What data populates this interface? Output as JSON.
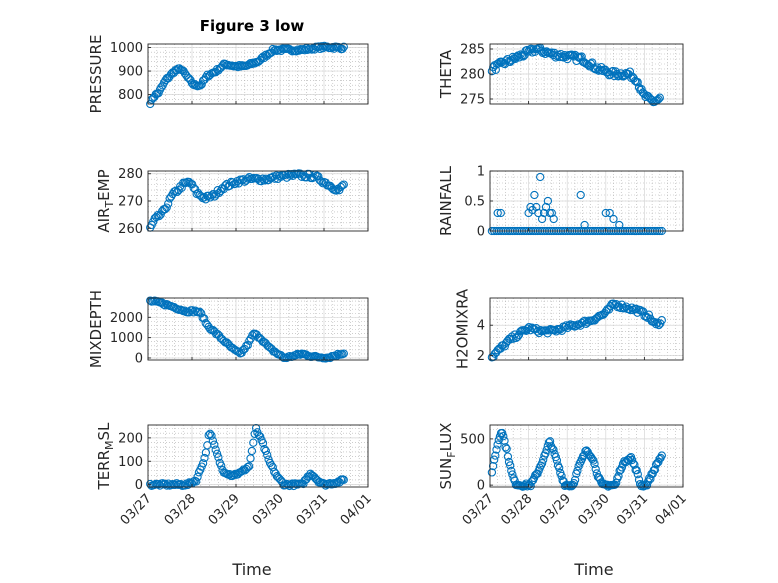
{
  "figure": {
    "title": "Figure 3 low",
    "xlabel": "Time"
  },
  "colors": {
    "marker": "#0072BD",
    "axis": "#262626",
    "grid": "#b0b0b0"
  },
  "chart_data": [
    {
      "type": "scatter",
      "name": "PRESSURE",
      "ylabel": "PRESSURE",
      "ylabel_sub": "",
      "xlim": [
        0,
        5
      ],
      "ylim": [
        760,
        1015
      ],
      "yticks": [
        800,
        900,
        1000
      ],
      "ytick_labels": [
        "800",
        "900",
        "1000"
      ],
      "xticks": [
        0,
        1,
        2,
        3,
        4,
        5
      ],
      "xtick_labels": [
        "03/27",
        "03/28",
        "03/29",
        "03/30",
        "03/31",
        "04/01"
      ],
      "show_xticklabels": false,
      "grid": "on",
      "anchors": [
        [
          0.05,
          760
        ],
        [
          0.12,
          790
        ],
        [
          0.25,
          810
        ],
        [
          0.4,
          860
        ],
        [
          0.6,
          900
        ],
        [
          0.75,
          910
        ],
        [
          0.95,
          860
        ],
        [
          1.05,
          840
        ],
        [
          1.2,
          840
        ],
        [
          1.35,
          880
        ],
        [
          1.55,
          900
        ],
        [
          1.75,
          930
        ],
        [
          2.0,
          920
        ],
        [
          2.2,
          920
        ],
        [
          2.5,
          940
        ],
        [
          2.85,
          990
        ],
        [
          3.2,
          990
        ],
        [
          3.5,
          990
        ],
        [
          3.8,
          998
        ],
        [
          4.05,
          1002
        ],
        [
          4.3,
          1000
        ],
        [
          4.45,
          998
        ]
      ],
      "samples": 140,
      "jitter": 6
    },
    {
      "type": "scatter",
      "name": "THETA",
      "ylabel": "THETA",
      "ylabel_sub": "",
      "xlim": [
        0,
        5
      ],
      "ylim": [
        274,
        286
      ],
      "yticks": [
        275,
        280,
        285
      ],
      "ytick_labels": [
        "275",
        "280",
        "285"
      ],
      "xticks": [
        0,
        1,
        2,
        3,
        4,
        5
      ],
      "xtick_labels": [
        "03/27",
        "03/28",
        "03/29",
        "03/30",
        "03/31",
        "04/01"
      ],
      "show_xticklabels": false,
      "grid": "on",
      "anchors": [
        [
          0.05,
          281
        ],
        [
          0.3,
          282
        ],
        [
          0.6,
          283
        ],
        [
          0.9,
          284
        ],
        [
          1.2,
          285
        ],
        [
          1.6,
          284
        ],
        [
          2.0,
          283.5
        ],
        [
          2.4,
          283
        ],
        [
          2.8,
          281
        ],
        [
          3.2,
          280
        ],
        [
          3.6,
          280
        ],
        [
          3.8,
          279
        ],
        [
          3.95,
          276
        ],
        [
          4.1,
          275
        ],
        [
          4.25,
          274.5
        ],
        [
          4.4,
          275
        ]
      ],
      "samples": 130,
      "jitter": 0.6
    },
    {
      "type": "scatter",
      "name": "AIR_TEMP",
      "ylabel": "AIR",
      "ylabel_sub": "T",
      "ylabel_suffix": "EMP",
      "xlim": [
        0,
        5
      ],
      "ylim": [
        259,
        281
      ],
      "yticks": [
        260,
        270,
        280
      ],
      "ytick_labels": [
        "260",
        "270",
        "280"
      ],
      "xticks": [
        0,
        1,
        2,
        3,
        4,
        5
      ],
      "xtick_labels": [
        "03/27",
        "03/28",
        "03/29",
        "03/30",
        "03/31",
        "04/01"
      ],
      "show_xticklabels": false,
      "grid": "on",
      "anchors": [
        [
          0.05,
          260
        ],
        [
          0.15,
          263
        ],
        [
          0.35,
          266
        ],
        [
          0.55,
          272
        ],
        [
          0.8,
          276
        ],
        [
          0.95,
          277
        ],
        [
          1.1,
          273
        ],
        [
          1.3,
          271
        ],
        [
          1.5,
          272
        ],
        [
          1.7,
          275
        ],
        [
          2.0,
          277
        ],
        [
          2.3,
          278
        ],
        [
          2.7,
          278
        ],
        [
          3.0,
          279
        ],
        [
          3.4,
          279.5
        ],
        [
          3.8,
          279
        ],
        [
          4.0,
          277
        ],
        [
          4.2,
          275
        ],
        [
          4.35,
          274
        ],
        [
          4.45,
          276
        ]
      ],
      "samples": 130,
      "jitter": 0.8
    },
    {
      "type": "scatter",
      "name": "RAINFALL",
      "ylabel": "RAINFALL",
      "ylabel_sub": "",
      "xlim": [
        0,
        5
      ],
      "ylim": [
        0,
        1
      ],
      "yticks": [
        0,
        0.5,
        1
      ],
      "ytick_labels": [
        "0",
        "0.5",
        "1"
      ],
      "xticks": [
        0,
        1,
        2,
        3,
        4,
        5
      ],
      "xtick_labels": [
        "03/27",
        "03/28",
        "03/29",
        "03/30",
        "03/31",
        "04/01"
      ],
      "show_xticklabels": false,
      "grid": "on",
      "points": [
        [
          0.2,
          0.3
        ],
        [
          0.28,
          0.3
        ],
        [
          1.0,
          0.3
        ],
        [
          1.05,
          0.4
        ],
        [
          1.1,
          0.35
        ],
        [
          1.15,
          0.6
        ],
        [
          1.2,
          0.4
        ],
        [
          1.25,
          0.3
        ],
        [
          1.3,
          0.9
        ],
        [
          1.35,
          0.2
        ],
        [
          1.4,
          0.3
        ],
        [
          1.45,
          0.4
        ],
        [
          1.5,
          0.5
        ],
        [
          1.55,
          0.3
        ],
        [
          1.6,
          0.3
        ],
        [
          1.65,
          0.2
        ],
        [
          2.35,
          0.6
        ],
        [
          2.45,
          0.1
        ],
        [
          3.0,
          0.3
        ],
        [
          3.1,
          0.3
        ],
        [
          3.2,
          0.2
        ],
        [
          3.35,
          0.1
        ]
      ],
      "baseline": 0,
      "baseline_from": 0.05,
      "baseline_to": 4.45,
      "baseline_count": 75
    },
    {
      "type": "scatter",
      "name": "MIXDEPTH",
      "ylabel": "MIXDEPTH",
      "ylabel_sub": "",
      "xlim": [
        0,
        5
      ],
      "ylim": [
        -100,
        2950
      ],
      "yticks": [
        0,
        1000,
        2000
      ],
      "ytick_labels": [
        "0",
        "1000",
        "2000"
      ],
      "xticks": [
        0,
        1,
        2,
        3,
        4,
        5
      ],
      "xtick_labels": [
        "03/27",
        "03/28",
        "03/29",
        "03/30",
        "03/31",
        "04/01"
      ],
      "show_xticklabels": false,
      "grid": "on",
      "anchors": [
        [
          0.05,
          2800
        ],
        [
          0.3,
          2700
        ],
        [
          0.6,
          2500
        ],
        [
          0.85,
          2300
        ],
        [
          1.1,
          2300
        ],
        [
          1.2,
          2200
        ],
        [
          1.35,
          1600
        ],
        [
          1.55,
          1200
        ],
        [
          1.75,
          800
        ],
        [
          1.95,
          400
        ],
        [
          2.1,
          200
        ],
        [
          2.25,
          600
        ],
        [
          2.4,
          1200
        ],
        [
          2.55,
          1000
        ],
        [
          2.75,
          500
        ],
        [
          2.95,
          200
        ],
        [
          3.1,
          0
        ],
        [
          3.3,
          100
        ],
        [
          3.5,
          200
        ],
        [
          3.8,
          50
        ],
        [
          4.1,
          20
        ],
        [
          4.3,
          150
        ],
        [
          4.45,
          250
        ]
      ],
      "samples": 130,
      "jitter": 60
    },
    {
      "type": "scatter",
      "name": "H2OMIXRA",
      "ylabel": "H2OMIXRA",
      "ylabel_sub": "",
      "xlim": [
        0,
        5
      ],
      "ylim": [
        1.7,
        5.8
      ],
      "yticks": [
        2,
        4
      ],
      "ytick_labels": [
        "2",
        "4"
      ],
      "xticks": [
        0,
        1,
        2,
        3,
        4,
        5
      ],
      "xtick_labels": [
        "03/27",
        "03/28",
        "03/29",
        "03/30",
        "03/31",
        "04/01"
      ],
      "show_xticklabels": false,
      "grid": "on",
      "anchors": [
        [
          0.05,
          1.9
        ],
        [
          0.25,
          2.4
        ],
        [
          0.5,
          3.0
        ],
        [
          0.8,
          3.5
        ],
        [
          1.0,
          3.8
        ],
        [
          1.3,
          3.6
        ],
        [
          1.6,
          3.6
        ],
        [
          1.9,
          3.8
        ],
        [
          2.2,
          4.0
        ],
        [
          2.6,
          4.3
        ],
        [
          3.0,
          4.8
        ],
        [
          3.2,
          5.4
        ],
        [
          3.5,
          5.2
        ],
        [
          3.8,
          5.0
        ],
        [
          4.1,
          4.6
        ],
        [
          4.3,
          4.0
        ],
        [
          4.45,
          4.3
        ]
      ],
      "samples": 120,
      "jitter": 0.15
    },
    {
      "type": "scatter",
      "name": "TERR_MSL",
      "ylabel": "TERR",
      "ylabel_sub": "M",
      "ylabel_suffix": "SL",
      "xlim": [
        0,
        5
      ],
      "ylim": [
        -10,
        255
      ],
      "yticks": [
        0,
        100,
        200
      ],
      "ytick_labels": [
        "0",
        "100",
        "200"
      ],
      "xticks": [
        0,
        1,
        2,
        3,
        4,
        5
      ],
      "xtick_labels": [
        "03/27",
        "03/28",
        "03/29",
        "03/30",
        "03/31",
        "04/01"
      ],
      "show_xticklabels": true,
      "grid": "on",
      "anchors": [
        [
          0.05,
          0
        ],
        [
          0.9,
          0
        ],
        [
          1.1,
          20
        ],
        [
          1.3,
          120
        ],
        [
          1.4,
          230
        ],
        [
          1.55,
          140
        ],
        [
          1.7,
          60
        ],
        [
          1.9,
          40
        ],
        [
          2.1,
          50
        ],
        [
          2.3,
          80
        ],
        [
          2.45,
          240
        ],
        [
          2.6,
          180
        ],
        [
          2.75,
          100
        ],
        [
          2.95,
          30
        ],
        [
          3.1,
          0
        ],
        [
          3.5,
          0
        ],
        [
          3.7,
          50
        ],
        [
          3.85,
          20
        ],
        [
          4.0,
          0
        ],
        [
          4.3,
          10
        ],
        [
          4.45,
          20
        ]
      ],
      "samples": 140,
      "jitter": 6
    },
    {
      "type": "scatter",
      "name": "SUN_FLUX",
      "ylabel": "SUN",
      "ylabel_sub": "F",
      "ylabel_suffix": "LUX",
      "xlim": [
        0,
        5
      ],
      "ylim": [
        -20,
        650
      ],
      "yticks": [
        0,
        500
      ],
      "ytick_labels": [
        "0",
        "500"
      ],
      "xticks": [
        0,
        1,
        2,
        3,
        4,
        5
      ],
      "xtick_labels": [
        "03/27",
        "03/28",
        "03/29",
        "03/30",
        "03/31",
        "04/01"
      ],
      "show_xticklabels": true,
      "grid": "on",
      "anchors": [
        [
          0.05,
          150
        ],
        [
          0.2,
          450
        ],
        [
          0.3,
          600
        ],
        [
          0.45,
          350
        ],
        [
          0.55,
          150
        ],
        [
          0.65,
          20
        ],
        [
          0.8,
          0
        ],
        [
          1.05,
          0
        ],
        [
          1.25,
          150
        ],
        [
          1.45,
          350
        ],
        [
          1.55,
          480
        ],
        [
          1.7,
          300
        ],
        [
          1.85,
          100
        ],
        [
          1.95,
          0
        ],
        [
          2.15,
          0
        ],
        [
          2.3,
          200
        ],
        [
          2.5,
          380
        ],
        [
          2.65,
          300
        ],
        [
          2.8,
          100
        ],
        [
          2.9,
          0
        ],
        [
          3.25,
          0
        ],
        [
          3.4,
          200
        ],
        [
          3.55,
          280
        ],
        [
          3.65,
          300
        ],
        [
          3.8,
          150
        ],
        [
          3.9,
          0
        ],
        [
          4.05,
          0
        ],
        [
          4.2,
          120
        ],
        [
          4.35,
          250
        ],
        [
          4.45,
          320
        ]
      ],
      "samples": 150,
      "jitter": 18
    }
  ]
}
